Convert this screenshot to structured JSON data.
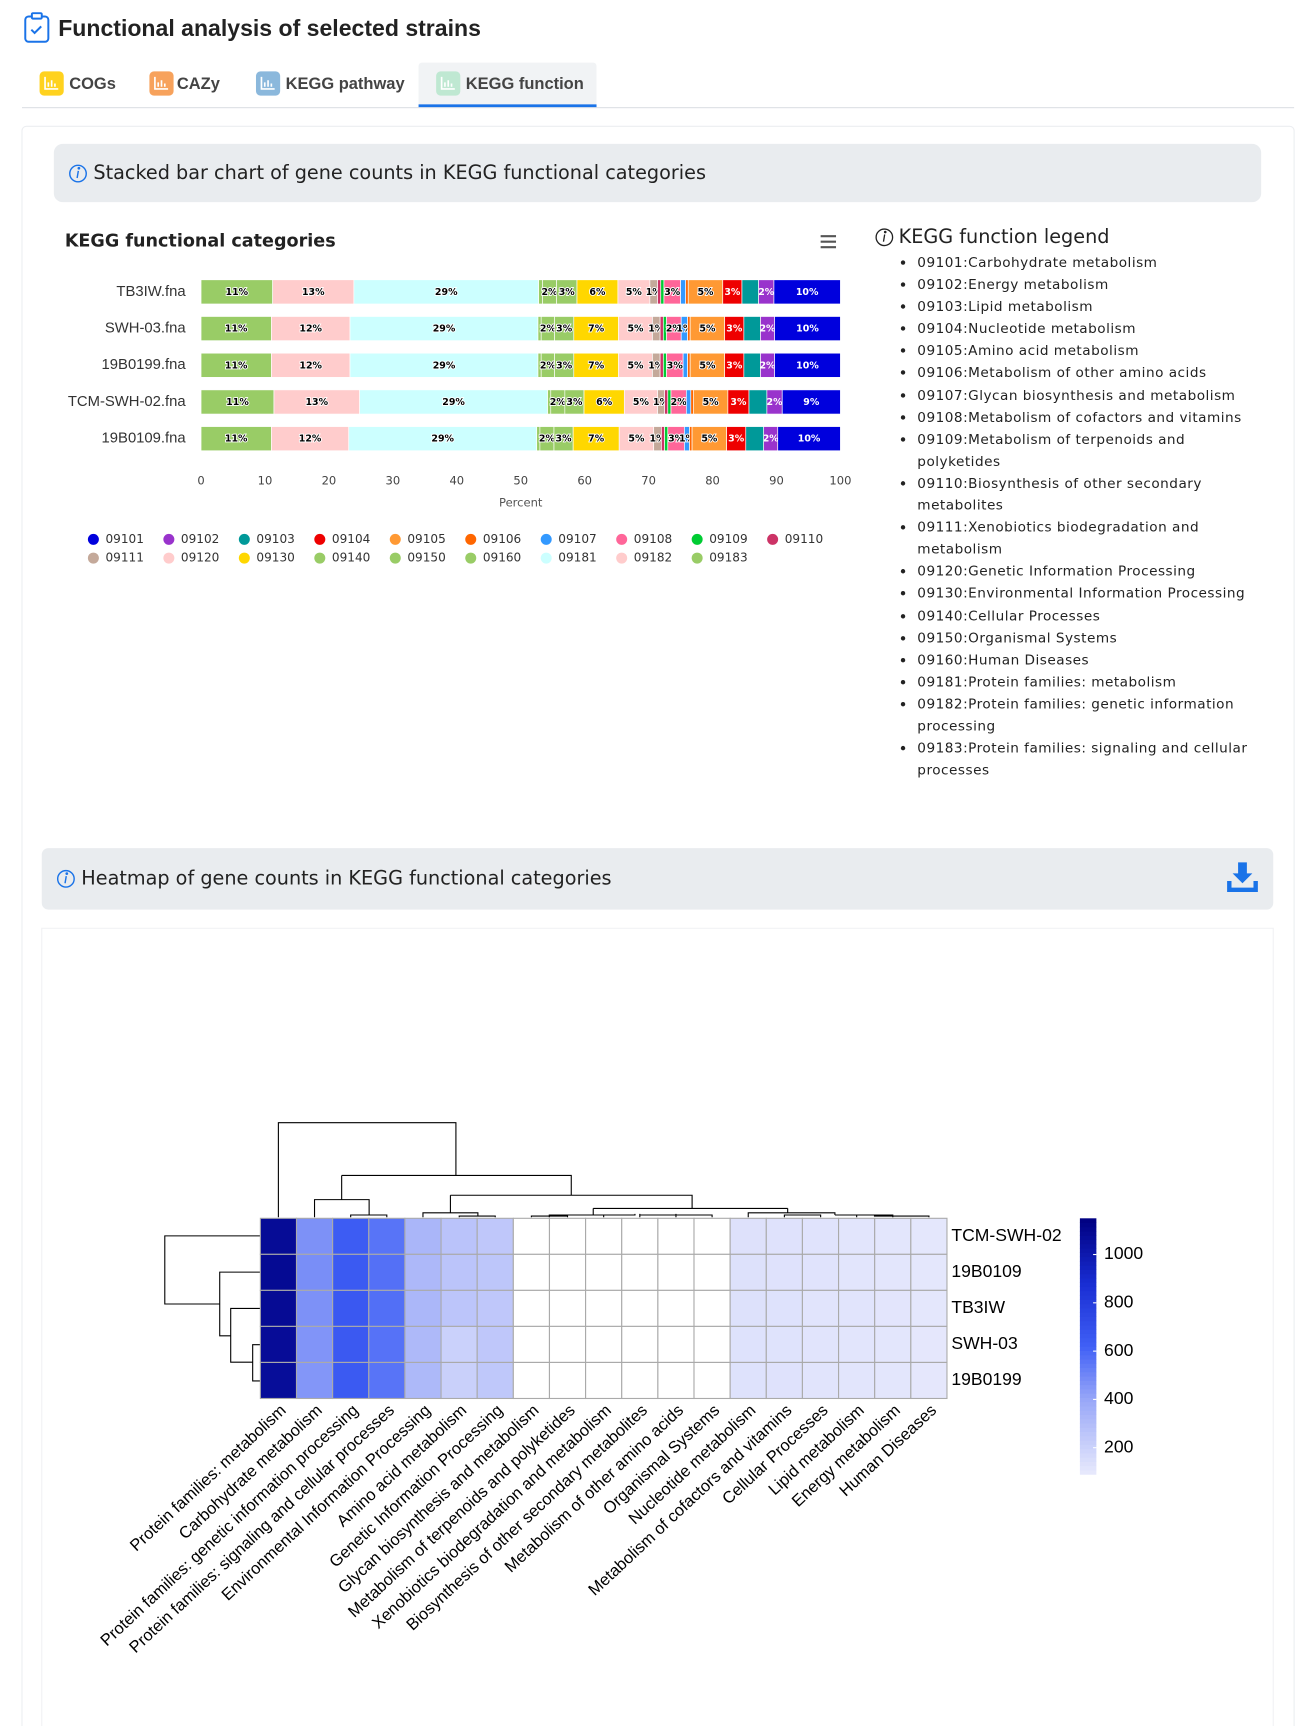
{
  "header": {
    "title": "Functional analysis of selected strains"
  },
  "tabs": [
    "COGs",
    "CAZy",
    "KEGG pathway",
    "KEGG function"
  ],
  "bar_section": {
    "title": "Stacked bar chart of gene counts in KEGG functional categories"
  },
  "legend_panel": {
    "title": "KEGG function legend",
    "items": [
      "09101:Carbohydrate metabolism",
      "09102:Energy metabolism",
      "09103:Lipid metabolism",
      "09104:Nucleotide metabolism",
      "09105:Amino acid metabolism",
      "09106:Metabolism of other amino acids",
      "09107:Glycan biosynthesis and metabolism",
      "09108:Metabolism of cofactors and vitamins",
      "09109:Metabolism of terpenoids and polyketides",
      "09110:Biosynthesis of other secondary metabolites",
      "09111:Xenobiotics biodegradation and metabolism",
      "09120:Genetic Information Processing",
      "09130:Environmental Information Processing",
      "09140:Cellular Processes",
      "09150:Organismal Systems",
      "09160:Human Diseases",
      "09181:Protein families: metabolism",
      "09182:Protein families: genetic information processing",
      "09183:Protein families: signaling and cellular processes"
    ]
  },
  "heatmap_section": {
    "title": "Heatmap of gene counts in KEGG functional categories"
  },
  "chart_data": [
    {
      "type": "bar",
      "orientation": "horizontal",
      "stacked": true,
      "title": "KEGG functional categories",
      "categories": [
        "TB3IW.fna",
        "SWH-03.fna",
        "19B0199.fna",
        "TCM-SWH-02.fna",
        "19B0109.fna"
      ],
      "xlabel": "Percent",
      "xlim": [
        0,
        100
      ],
      "xticks": [
        0,
        10,
        20,
        30,
        40,
        50,
        60,
        70,
        80,
        90,
        100
      ],
      "series": [
        {
          "name": "09101",
          "color": "#0000dd",
          "values": [
            10.4,
            10.3,
            10.3,
            9.1,
            9.8
          ],
          "value_labels": [
            "10%",
            "10%",
            "10%",
            "9%",
            "10%"
          ]
        },
        {
          "name": "09102",
          "color": "#9933cc",
          "values": [
            2.4,
            2.2,
            2.2,
            2.4,
            2.2
          ],
          "value_labels": [
            "2%",
            "2%",
            "2%",
            "2%",
            "2%"
          ]
        },
        {
          "name": "09103",
          "color": "#009999",
          "values": [
            2.6,
            2.6,
            2.6,
            2.8,
            2.8
          ]
        },
        {
          "name": "09104",
          "color": "#ee0000",
          "values": [
            3.0,
            3.0,
            3.0,
            3.3,
            3.0
          ],
          "value_labels": [
            "3%",
            "3%",
            "3%",
            "3%",
            "3%"
          ]
        },
        {
          "name": "09105",
          "color": "#ff9933",
          "values": [
            5.4,
            5.4,
            5.4,
            5.4,
            5.4
          ],
          "value_labels": [
            "5%",
            "5%",
            "5%",
            "5%",
            "5%"
          ]
        },
        {
          "name": "09106",
          "color": "#ff6600",
          "values": [
            0.4,
            0.4,
            0.4,
            0.4,
            0.4
          ]
        },
        {
          "name": "09107",
          "color": "#3399ff",
          "values": [
            0.8,
            1.0,
            0.7,
            0.7,
            0.8
          ],
          "value_labels": [
            null,
            "1%",
            null,
            null,
            "1%"
          ]
        },
        {
          "name": "09108",
          "color": "#ff6699",
          "values": [
            2.6,
            2.3,
            2.6,
            2.4,
            2.6
          ],
          "value_labels": [
            "3%",
            "2%",
            "3%",
            "2%",
            "3%"
          ]
        },
        {
          "name": "09109",
          "color": "#00cc33",
          "values": [
            0.5,
            0.5,
            0.5,
            0.5,
            0.5
          ]
        },
        {
          "name": "09110",
          "color": "#cc3366",
          "values": [
            0.5,
            0.5,
            0.5,
            0.5,
            0.5
          ]
        },
        {
          "name": "09111",
          "color": "#c4a99a",
          "values": [
            1.2,
            1.2,
            1.2,
            1.1,
            1.2
          ],
          "value_labels": [
            "1%",
            "1%",
            "1%",
            "1%",
            "1%"
          ]
        },
        {
          "name": "09120",
          "color": "#ffcccc",
          "values": [
            5.0,
            5.3,
            5.3,
            5.2,
            5.4
          ],
          "value_labels": [
            "5%",
            "5%",
            "5%",
            "5%",
            "5%"
          ]
        },
        {
          "name": "09130",
          "color": "#ffd700",
          "values": [
            6.4,
            7.0,
            7.0,
            6.3,
            7.2
          ],
          "value_labels": [
            "6%",
            "7%",
            "7%",
            "6%",
            "7%"
          ]
        },
        {
          "name": "09140",
          "color": "#99cc66",
          "values": [
            3.2,
            3.0,
            3.0,
            3.0,
            3.0
          ],
          "value_labels": [
            "3%",
            "3%",
            "3%",
            "3%",
            "3%"
          ]
        },
        {
          "name": "09150",
          "color": "#99cc66",
          "values": [
            2.2,
            2.1,
            2.1,
            2.2,
            2.2
          ],
          "value_labels": [
            "2%",
            "2%",
            "2%",
            "2%",
            "2%"
          ]
        },
        {
          "name": "09160",
          "color": "#99cc66",
          "values": [
            0.6,
            0.5,
            0.5,
            0.5,
            0.5
          ]
        },
        {
          "name": "09181",
          "color": "#ccffff",
          "values": [
            28.9,
            29.4,
            29.4,
            29.4,
            29.4
          ],
          "value_labels": [
            "29%",
            "29%",
            "29%",
            "29%",
            "29%"
          ]
        },
        {
          "name": "09182",
          "color": "#ffcccc",
          "values": [
            12.7,
            12.3,
            12.3,
            13.4,
            12.1
          ],
          "value_labels": [
            "13%",
            "12%",
            "12%",
            "13%",
            "12%"
          ]
        },
        {
          "name": "09183",
          "color": "#99cc66",
          "values": [
            11.2,
            11.0,
            11.0,
            11.4,
            11.0
          ],
          "value_labels": [
            "11%",
            "11%",
            "11%",
            "11%",
            "11%"
          ]
        }
      ]
    },
    {
      "type": "heatmap",
      "rows": [
        "TCM-SWH-02",
        "19B0109",
        "TB3IW",
        "SWH-03",
        "19B0199"
      ],
      "columns": [
        "Protein families: metabolism",
        "Carbohydrate metabolism",
        "Protein families: genetic information processing",
        "Protein families: signaling and cellular processes",
        "Environmental Information Processing",
        "Amino acid metabolism",
        "Genetic Information Processing",
        "Glycan biosynthesis and metabolism",
        "Metabolism of terpenoids and polyketides",
        "Xenobiotics biodegradation and metabolism",
        "Biosynthesis of other secondary metabolites",
        "Metabolism of other amino acids",
        "Organismal Systems",
        "Nucleotide metabolism",
        "Metabolism of cofactors and vitamins",
        "Cellular Processes",
        "Lipid metabolism",
        "Energy metabolism",
        "Human Diseases"
      ],
      "values": [
        [
          1080,
          470,
          640,
          560,
          330,
          270,
          250,
          50,
          45,
          40,
          35,
          30,
          25,
          130,
          125,
          120,
          115,
          110,
          105
        ],
        [
          1090,
          480,
          650,
          570,
          320,
          265,
          255,
          52,
          44,
          41,
          36,
          31,
          24,
          132,
          126,
          121,
          114,
          109,
          104
        ],
        [
          1085,
          470,
          660,
          575,
          325,
          260,
          250,
          51,
          46,
          40,
          35,
          30,
          26,
          131,
          127,
          119,
          116,
          111,
          106
        ],
        [
          1075,
          460,
          655,
          565,
          315,
          205,
          250,
          50,
          45,
          39,
          34,
          29,
          25,
          128,
          124,
          118,
          113,
          108,
          103
        ],
        [
          1070,
          455,
          650,
          560,
          318,
          210,
          248,
          49,
          44,
          39,
          34,
          30,
          24,
          129,
          125,
          118,
          113,
          108,
          103
        ]
      ],
      "clim": [
        90,
        1150
      ],
      "cticks": [
        200,
        400,
        600,
        800,
        1000
      ]
    }
  ]
}
